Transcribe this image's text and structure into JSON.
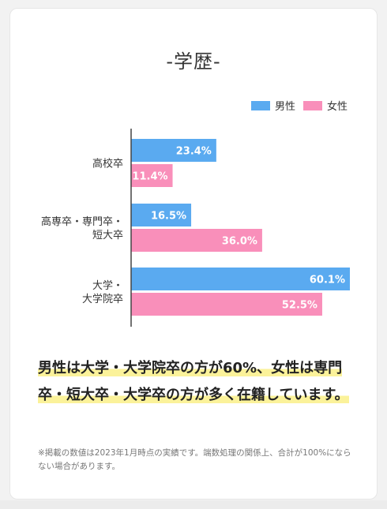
{
  "colors": {
    "male": "#5aaaf0",
    "female": "#f98fba",
    "highlight": "#fbf29a"
  },
  "chart_data": {
    "type": "bar",
    "orientation": "horizontal",
    "title": "-学歴-",
    "categories": [
      [
        "高校卒"
      ],
      [
        "高専卒・専門卒・",
        "短大卒"
      ],
      [
        "大学・",
        "大学院卒"
      ]
    ],
    "series": [
      {
        "name": "男性",
        "values": [
          23.4,
          16.5,
          60.1
        ],
        "labels": [
          "23.4%",
          "16.5%",
          "60.1%"
        ]
      },
      {
        "name": "女性",
        "values": [
          11.4,
          36.0,
          52.5
        ],
        "labels": [
          "11.4%",
          "36.0%",
          "52.5%"
        ]
      }
    ],
    "xlim": [
      0,
      60.1
    ],
    "legend_position": "top-right",
    "grid": false
  },
  "text": {
    "conclusion": "男性は大学・大学院卒の方が60%、女性は専門卒・短大卒・大学卒の方が多く在籍しています。",
    "note": "※掲載の数値は2023年1月時点の実績です。端数処理の関係上、合計が100%にならない場合があります。"
  }
}
